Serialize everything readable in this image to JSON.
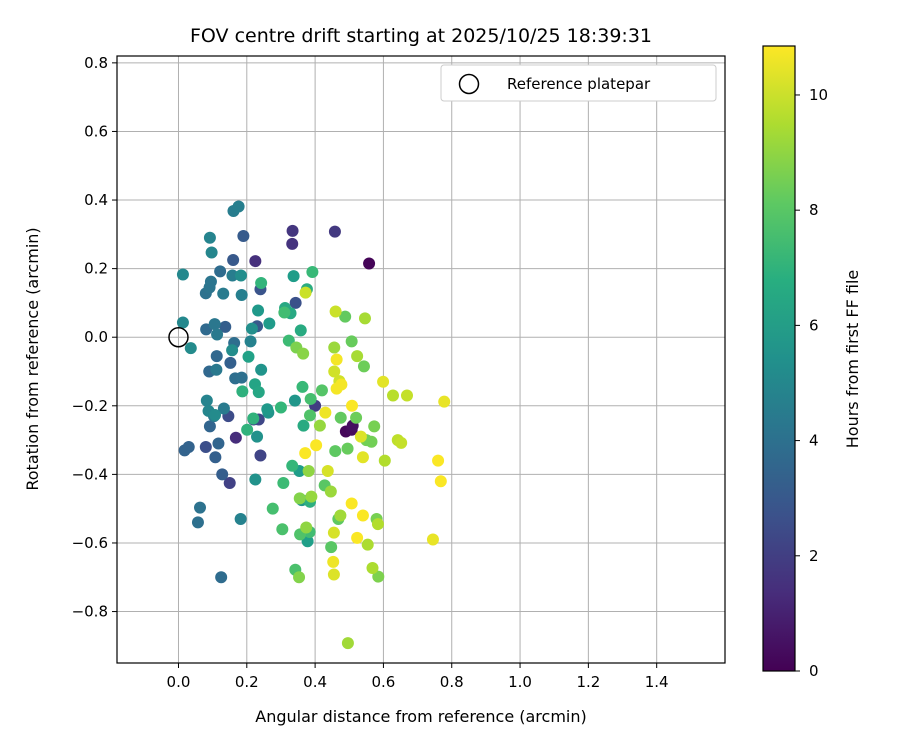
{
  "chart_data": {
    "type": "scatter",
    "title": "FOV centre drift starting at 2025/10/25 18:39:31",
    "xlabel": "Angular distance from reference (arcmin)",
    "ylabel": "Rotation from reference (arcmin)",
    "xlim": [
      -0.18,
      1.6
    ],
    "ylim": [
      -0.95,
      0.82
    ],
    "xticks": [
      0.0,
      0.2,
      0.4,
      0.6,
      0.8,
      1.0,
      1.2,
      1.4
    ],
    "xtick_labels": [
      "0.0",
      "0.2",
      "0.4",
      "0.6",
      "0.8",
      "1.0",
      "1.2",
      "1.4"
    ],
    "yticks": [
      -0.8,
      -0.6,
      -0.4,
      -0.2,
      0.0,
      0.2,
      0.4,
      0.6,
      0.8
    ],
    "ytick_labels": [
      "−0.8",
      "−0.6",
      "−0.4",
      "−0.2",
      "0.0",
      "0.2",
      "0.4",
      "0.6",
      "0.8"
    ],
    "grid": true,
    "legend": {
      "position": "top-right",
      "entries": [
        "Reference platepar"
      ]
    },
    "reference_point": {
      "x": 0.0,
      "y": 0.0,
      "label": "Reference platepar"
    },
    "colorbar": {
      "label": "Hours from first FF file",
      "range": [
        0,
        10.85
      ],
      "ticks": [
        0,
        2,
        4,
        6,
        8,
        10
      ],
      "tick_labels": [
        "0",
        "2",
        "4",
        "6",
        "8",
        "10"
      ],
      "colormap": "viridis"
    },
    "points": [
      [
        0.558,
        0.215,
        0.1
      ],
      [
        0.49,
        -0.275,
        0.2
      ],
      [
        0.507,
        -0.27,
        0.3
      ],
      [
        0.51,
        -0.258,
        0.4
      ],
      [
        0.168,
        -0.293,
        1.4
      ],
      [
        0.225,
        0.222,
        1.5
      ],
      [
        0.333,
        0.272,
        1.6
      ],
      [
        0.334,
        0.31,
        1.7
      ],
      [
        0.458,
        0.308,
        1.8
      ],
      [
        0.4,
        -0.2,
        1.9
      ],
      [
        0.15,
        -0.425,
        2.1
      ],
      [
        0.24,
        -0.345,
        2.2
      ],
      [
        0.235,
        -0.24,
        2.3
      ],
      [
        0.22,
        -0.24,
        2.4
      ],
      [
        0.146,
        -0.23,
        2.5
      ],
      [
        0.08,
        -0.32,
        2.6
      ],
      [
        0.343,
        0.1,
        2.7
      ],
      [
        0.24,
        0.14,
        2.8
      ],
      [
        0.23,
        0.032,
        3.0
      ],
      [
        0.16,
        0.225,
        3.0
      ],
      [
        0.19,
        0.295,
        3.1
      ],
      [
        0.128,
        -0.4,
        3.2
      ],
      [
        0.137,
        0.03,
        3.2
      ],
      [
        0.152,
        -0.075,
        3.3
      ],
      [
        0.108,
        -0.35,
        3.3
      ],
      [
        0.018,
        -0.33,
        3.4
      ],
      [
        0.03,
        -0.32,
        3.4
      ],
      [
        0.092,
        -0.26,
        3.5
      ],
      [
        0.117,
        -0.31,
        3.5
      ],
      [
        0.112,
        -0.055,
        3.6
      ],
      [
        0.09,
        -0.1,
        3.6
      ],
      [
        0.081,
        0.023,
        3.7
      ],
      [
        0.122,
        0.192,
        3.8
      ],
      [
        0.125,
        -0.7,
        3.8
      ],
      [
        0.163,
        -0.017,
        3.9
      ],
      [
        0.166,
        -0.12,
        3.9
      ],
      [
        0.185,
        -0.118,
        4.0
      ],
      [
        0.057,
        -0.54,
        4.0
      ],
      [
        0.063,
        -0.497,
        4.1
      ],
      [
        0.08,
        0.128,
        4.1
      ],
      [
        0.091,
        0.145,
        4.2
      ],
      [
        0.095,
        0.162,
        4.2
      ],
      [
        0.106,
        0.038,
        4.3
      ],
      [
        0.104,
        -0.23,
        4.3
      ],
      [
        0.111,
        -0.095,
        4.4
      ],
      [
        0.113,
        0.008,
        4.4
      ],
      [
        0.131,
        0.127,
        4.5
      ],
      [
        0.133,
        -0.208,
        4.5
      ],
      [
        0.158,
        0.18,
        4.6
      ],
      [
        0.161,
        0.368,
        4.6
      ],
      [
        0.176,
        0.381,
        4.7
      ],
      [
        0.185,
        0.123,
        4.7
      ],
      [
        0.182,
        -0.53,
        4.8
      ],
      [
        0.211,
        -0.012,
        4.8
      ],
      [
        0.083,
        -0.185,
        4.9
      ],
      [
        0.092,
        0.29,
        4.9
      ],
      [
        0.097,
        0.247,
        5.0
      ],
      [
        0.088,
        -0.215,
        5.0
      ],
      [
        0.013,
        0.043,
        5.1
      ],
      [
        0.013,
        0.183,
        5.1
      ],
      [
        0.036,
        -0.032,
        5.2
      ],
      [
        0.107,
        -0.227,
        5.2
      ],
      [
        0.157,
        -0.038,
        5.3
      ],
      [
        0.183,
        0.18,
        5.3
      ],
      [
        0.215,
        0.025,
        5.4
      ],
      [
        0.225,
        -0.415,
        5.5
      ],
      [
        0.23,
        -0.29,
        5.5
      ],
      [
        0.242,
        -0.095,
        5.6
      ],
      [
        0.263,
        -0.22,
        5.6
      ],
      [
        0.341,
        -0.185,
        5.7
      ],
      [
        0.361,
        -0.475,
        5.7
      ],
      [
        0.233,
        0.078,
        5.8
      ],
      [
        0.26,
        -0.21,
        5.8
      ],
      [
        0.266,
        0.04,
        5.9
      ],
      [
        0.337,
        0.178,
        6.0
      ],
      [
        0.354,
        -0.39,
        6.0
      ],
      [
        0.378,
        -0.595,
        6.1
      ],
      [
        0.205,
        -0.057,
        6.2
      ],
      [
        0.224,
        -0.137,
        6.3
      ],
      [
        0.235,
        -0.16,
        6.4
      ],
      [
        0.312,
        0.085,
        6.5
      ],
      [
        0.328,
        0.07,
        6.5
      ],
      [
        0.358,
        0.02,
        6.6
      ],
      [
        0.366,
        -0.258,
        6.6
      ],
      [
        0.376,
        0.14,
        6.7
      ],
      [
        0.385,
        -0.48,
        6.8
      ],
      [
        0.187,
        -0.158,
        6.9
      ],
      [
        0.201,
        -0.27,
        7.0
      ],
      [
        0.219,
        -0.237,
        7.0
      ],
      [
        0.242,
        0.158,
        7.1
      ],
      [
        0.3,
        -0.205,
        7.2
      ],
      [
        0.333,
        -0.375,
        7.2
      ],
      [
        0.363,
        -0.145,
        7.3
      ],
      [
        0.392,
        0.19,
        7.3
      ],
      [
        0.307,
        -0.425,
        7.4
      ],
      [
        0.323,
        -0.01,
        7.4
      ],
      [
        0.31,
        0.072,
        7.5
      ],
      [
        0.384,
        -0.568,
        7.5
      ],
      [
        0.387,
        -0.18,
        7.6
      ],
      [
        0.276,
        -0.5,
        7.6
      ],
      [
        0.304,
        -0.56,
        7.7
      ],
      [
        0.342,
        -0.678,
        7.7
      ],
      [
        0.356,
        -0.575,
        7.8
      ],
      [
        0.385,
        -0.228,
        7.8
      ],
      [
        0.42,
        -0.155,
        7.9
      ],
      [
        0.428,
        -0.432,
        8.0
      ],
      [
        0.447,
        -0.612,
        8.0
      ],
      [
        0.459,
        -0.332,
        8.1
      ],
      [
        0.468,
        -0.53,
        8.1
      ],
      [
        0.475,
        -0.235,
        8.2
      ],
      [
        0.488,
        0.06,
        8.2
      ],
      [
        0.495,
        -0.325,
        8.3
      ],
      [
        0.507,
        -0.012,
        8.3
      ],
      [
        0.52,
        -0.235,
        8.4
      ],
      [
        0.543,
        -0.085,
        8.4
      ],
      [
        0.55,
        -0.3,
        8.5
      ],
      [
        0.565,
        -0.305,
        8.5
      ],
      [
        0.573,
        -0.26,
        8.6
      ],
      [
        0.58,
        -0.53,
        8.6
      ],
      [
        0.585,
        -0.698,
        8.7
      ],
      [
        0.345,
        -0.03,
        8.7
      ],
      [
        0.353,
        -0.7,
        8.8
      ],
      [
        0.355,
        -0.47,
        8.8
      ],
      [
        0.365,
        -0.048,
        8.9
      ],
      [
        0.374,
        -0.555,
        9.0
      ],
      [
        0.381,
        -0.39,
        9.0
      ],
      [
        0.389,
        -0.465,
        9.1
      ],
      [
        0.414,
        -0.258,
        9.1
      ],
      [
        0.446,
        -0.45,
        9.2
      ],
      [
        0.456,
        -0.03,
        9.2
      ],
      [
        0.474,
        -0.52,
        9.3
      ],
      [
        0.496,
        -0.892,
        9.3
      ],
      [
        0.523,
        -0.055,
        9.4
      ],
      [
        0.546,
        0.055,
        9.4
      ],
      [
        0.554,
        -0.605,
        9.5
      ],
      [
        0.568,
        -0.673,
        9.5
      ],
      [
        0.584,
        -0.545,
        9.6
      ],
      [
        0.604,
        -0.36,
        9.6
      ],
      [
        0.628,
        -0.17,
        9.7
      ],
      [
        0.642,
        -0.3,
        9.8
      ],
      [
        0.652,
        -0.308,
        9.9
      ],
      [
        0.669,
        -0.17,
        9.9
      ],
      [
        0.372,
        0.13,
        10.0
      ],
      [
        0.46,
        0.075,
        10.0
      ],
      [
        0.456,
        -0.1,
        10.1
      ],
      [
        0.471,
        -0.128,
        10.1
      ],
      [
        0.437,
        -0.39,
        10.2
      ],
      [
        0.455,
        -0.57,
        10.2
      ],
      [
        0.455,
        -0.692,
        10.3
      ],
      [
        0.534,
        -0.29,
        10.3
      ],
      [
        0.54,
        -0.35,
        10.4
      ],
      [
        0.599,
        -0.13,
        10.4
      ],
      [
        0.745,
        -0.59,
        10.5
      ],
      [
        0.778,
        -0.188,
        10.5
      ],
      [
        0.43,
        -0.22,
        10.6
      ],
      [
        0.453,
        -0.655,
        10.6
      ],
      [
        0.463,
        -0.065,
        10.7
      ],
      [
        0.463,
        -0.15,
        10.7
      ],
      [
        0.477,
        -0.138,
        10.7
      ],
      [
        0.508,
        -0.2,
        10.8
      ],
      [
        0.507,
        -0.485,
        10.8
      ],
      [
        0.523,
        -0.585,
        10.8
      ],
      [
        0.54,
        -0.52,
        10.8
      ],
      [
        0.76,
        -0.36,
        10.8
      ],
      [
        0.768,
        -0.42,
        10.8
      ],
      [
        0.403,
        -0.315,
        10.8
      ],
      [
        0.371,
        -0.338,
        10.8
      ]
    ]
  }
}
